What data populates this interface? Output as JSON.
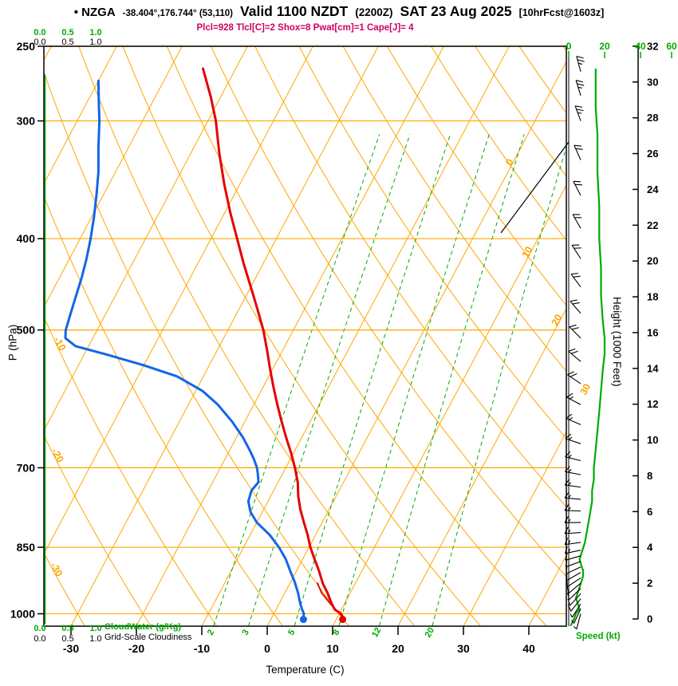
{
  "title": {
    "bullet_station": "• NZGA",
    "coords": "-38.404°,176.744° (53,110)",
    "valid": "Valid 1100 NZDT",
    "valid_z": "(2200Z)",
    "date": "SAT 23 Aug 2025",
    "fcst": "[10hrFcst@1603z]"
  },
  "params_line": "Plcl=928 Tlcl[C]=2 Shox=8 Pwat[cm]=1 Cape[J]= 4",
  "colors": {
    "orange": "#ffa500",
    "green": "#00aa00",
    "red": "#e60000",
    "blue": "#1565e6",
    "magenta": "#cc0066",
    "black": "#000000"
  },
  "axes": {
    "pressure": {
      "label": "P (hPa)",
      "ticks": [
        250,
        300,
        400,
        500,
        700,
        850,
        1000
      ]
    },
    "temperature": {
      "label": "Temperature (C)",
      "ticks": [
        -30,
        -20,
        -10,
        0,
        10,
        20,
        30,
        40
      ]
    },
    "height": {
      "label": "Height (1000 Feet)",
      "ticks": [
        0,
        2,
        4,
        6,
        8,
        10,
        12,
        14,
        16,
        18,
        20,
        22,
        24,
        26,
        28,
        30,
        32
      ]
    },
    "speed": {
      "label": "Speed (kt)",
      "ticks": [
        0,
        20,
        40,
        60
      ]
    },
    "cloudwater": {
      "label": "CloudWater (g/Kg)",
      "ticks": [
        "0.0",
        "0.5",
        "1.0"
      ]
    },
    "cloudiness": {
      "label": "Grid-Scale Cloudiness",
      "ticks": [
        "0.0",
        "0.5",
        "1.0"
      ]
    }
  },
  "line_labels": {
    "isotherms": [
      {
        "value": 0,
        "y": 205
      },
      {
        "value": 10,
        "y": 318
      },
      {
        "value": 20,
        "y": 403
      },
      {
        "value": 30,
        "y": 490
      }
    ],
    "dry_adiabats": [
      {
        "value": -10,
        "y": 433
      },
      {
        "value": -20,
        "y": 573
      },
      {
        "value": -30,
        "y": 716
      }
    ]
  },
  "background": {
    "isotherm_step_C": 10,
    "dry_adiabat_step_C": 10,
    "mixing_ratio_g_kg": [
      2,
      3,
      5,
      8,
      12,
      20
    ],
    "aux_lines": [
      [
        628,
        292,
        713,
        178
      ]
    ]
  },
  "chart_data": {
    "type": "line",
    "subtype": "skew-t-log-p-sounding",
    "station": "NZGA",
    "location_deg": "-38.404, 176.744",
    "grid_point": "(53,110)",
    "valid": "1100 NZDT (2200Z) SAT 23 Aug 2025",
    "forecast": "10hrFcst@1603z",
    "indices": {
      "Plcl_hPa": 928,
      "Tlcl_C": 2,
      "Showalter": 8,
      "Pwat_cm": 1,
      "Cape_J": 4
    },
    "pressure_axis_hPa": [
      1030,
      250
    ],
    "temperature_axis_C": [
      -35,
      45
    ],
    "series": [
      {
        "name": "temperature_C",
        "color": "#e60000",
        "points": [
          [
            1008,
            10.8
          ],
          [
            1000,
            10.3
          ],
          [
            990,
            9.0
          ],
          [
            975,
            8.0
          ],
          [
            950,
            6.5
          ],
          [
            928,
            5.0
          ],
          [
            900,
            3.4
          ],
          [
            875,
            1.8
          ],
          [
            850,
            0.2
          ],
          [
            825,
            -1.2
          ],
          [
            800,
            -2.8
          ],
          [
            775,
            -4.4
          ],
          [
            750,
            -5.8
          ],
          [
            725,
            -7.0
          ],
          [
            700,
            -8.6
          ],
          [
            675,
            -10.4
          ],
          [
            650,
            -12.4
          ],
          [
            625,
            -14.4
          ],
          [
            600,
            -16.4
          ],
          [
            575,
            -18.4
          ],
          [
            550,
            -20.4
          ],
          [
            525,
            -22.4
          ],
          [
            500,
            -24.6
          ],
          [
            475,
            -27.2
          ],
          [
            450,
            -30.0
          ],
          [
            425,
            -33.0
          ],
          [
            400,
            -36.0
          ],
          [
            375,
            -39.2
          ],
          [
            350,
            -42.4
          ],
          [
            325,
            -45.6
          ],
          [
            300,
            -48.8
          ],
          [
            283,
            -51.5
          ],
          [
            264,
            -55.0
          ]
        ]
      },
      {
        "name": "dewpoint_C",
        "color": "#1565e6",
        "points": [
          [
            1008,
            4.8
          ],
          [
            1000,
            4.6
          ],
          [
            990,
            4.0
          ],
          [
            975,
            3.2
          ],
          [
            950,
            2.0
          ],
          [
            925,
            0.6
          ],
          [
            900,
            -1.0
          ],
          [
            875,
            -2.6
          ],
          [
            850,
            -4.6
          ],
          [
            825,
            -7.0
          ],
          [
            800,
            -10.0
          ],
          [
            780,
            -11.8
          ],
          [
            760,
            -13.0
          ],
          [
            740,
            -13.4
          ],
          [
            725,
            -13.0
          ],
          [
            710,
            -13.8
          ],
          [
            700,
            -14.4
          ],
          [
            685,
            -15.6
          ],
          [
            670,
            -17.0
          ],
          [
            650,
            -19.0
          ],
          [
            625,
            -22.0
          ],
          [
            600,
            -25.5
          ],
          [
            580,
            -29.0
          ],
          [
            560,
            -34.0
          ],
          [
            545,
            -40.0
          ],
          [
            530,
            -47.0
          ],
          [
            520,
            -52.0
          ],
          [
            510,
            -54.2
          ],
          [
            500,
            -54.8
          ],
          [
            480,
            -55.4
          ],
          [
            460,
            -56.0
          ],
          [
            440,
            -56.6
          ],
          [
            420,
            -57.4
          ],
          [
            400,
            -58.4
          ],
          [
            380,
            -59.6
          ],
          [
            360,
            -61.0
          ],
          [
            340,
            -62.6
          ],
          [
            320,
            -64.6
          ],
          [
            300,
            -66.6
          ],
          [
            285,
            -68.4
          ],
          [
            272,
            -70.0
          ]
        ]
      },
      {
        "name": "parcel_C",
        "color": "#e60000",
        "points": [
          [
            1008,
            10.8
          ],
          [
            980,
            8.2
          ],
          [
            950,
            5.6
          ],
          [
            928,
            4.2
          ]
        ]
      },
      {
        "name": "wind_speed_kt",
        "color": "#00aa00",
        "points": [
          [
            1030,
            1
          ],
          [
            1012,
            3
          ],
          [
            1000,
            4
          ],
          [
            988,
            6
          ],
          [
            975,
            5
          ],
          [
            962,
            4
          ],
          [
            950,
            5
          ],
          [
            938,
            6
          ],
          [
            925,
            7
          ],
          [
            912,
            8
          ],
          [
            900,
            8
          ],
          [
            888,
            7
          ],
          [
            876,
            6
          ],
          [
            864,
            7
          ],
          [
            852,
            8
          ],
          [
            840,
            9
          ],
          [
            820,
            10
          ],
          [
            800,
            11
          ],
          [
            780,
            12
          ],
          [
            760,
            13
          ],
          [
            740,
            13
          ],
          [
            720,
            14
          ],
          [
            700,
            14
          ],
          [
            670,
            15
          ],
          [
            640,
            16
          ],
          [
            610,
            17
          ],
          [
            580,
            18
          ],
          [
            550,
            19
          ],
          [
            530,
            20
          ],
          [
            510,
            20
          ],
          [
            490,
            19
          ],
          [
            460,
            18
          ],
          [
            430,
            18
          ],
          [
            400,
            17
          ],
          [
            370,
            17
          ],
          [
            340,
            16
          ],
          [
            310,
            16
          ],
          [
            290,
            15
          ],
          [
            272,
            15
          ],
          [
            264,
            15
          ]
        ]
      }
    ],
    "wind_barbs_p_dir_kt": [
      [
        1000,
        195,
        5
      ],
      [
        988,
        205,
        6
      ],
      [
        976,
        212,
        7
      ],
      [
        964,
        218,
        8
      ],
      [
        952,
        222,
        9
      ],
      [
        940,
        226,
        10
      ],
      [
        928,
        230,
        10
      ],
      [
        916,
        236,
        11
      ],
      [
        904,
        240,
        11
      ],
      [
        892,
        245,
        12
      ],
      [
        880,
        250,
        12
      ],
      [
        868,
        254,
        12
      ],
      [
        856,
        258,
        13
      ],
      [
        840,
        262,
        13
      ],
      [
        820,
        266,
        13
      ],
      [
        800,
        269,
        14
      ],
      [
        778,
        272,
        14
      ],
      [
        756,
        275,
        15
      ],
      [
        734,
        278,
        15
      ],
      [
        712,
        281,
        15
      ],
      [
        688,
        284,
        15
      ],
      [
        660,
        288,
        16
      ],
      [
        630,
        293,
        17
      ],
      [
        600,
        298,
        17
      ],
      [
        570,
        304,
        18
      ],
      [
        540,
        310,
        19
      ],
      [
        510,
        315,
        19
      ],
      [
        480,
        319,
        20
      ],
      [
        450,
        323,
        20
      ],
      [
        420,
        327,
        21
      ],
      [
        390,
        330,
        21
      ],
      [
        360,
        333,
        22
      ],
      [
        330,
        336,
        22
      ],
      [
        300,
        340,
        23
      ],
      [
        282,
        343,
        24
      ],
      [
        266,
        345,
        25
      ]
    ]
  }
}
